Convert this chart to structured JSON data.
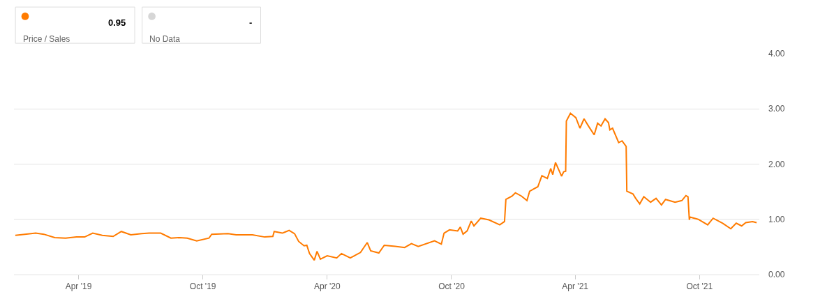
{
  "chart_data": {
    "type": "line",
    "annotations": [
      "Price / Sales",
      "0.95",
      "No Data",
      "-"
    ],
    "x": [
      "2018-12-29",
      "2019-01-12",
      "2019-01-28",
      "2019-02-09",
      "2019-02-25",
      "2019-03-13",
      "2019-03-29",
      "2019-04-10",
      "2019-04-22",
      "2019-05-06",
      "2019-05-22",
      "2019-06-03",
      "2019-06-17",
      "2019-07-03",
      "2019-07-14",
      "2019-07-31",
      "2019-08-15",
      "2019-08-28",
      "2019-09-08",
      "2019-09-22",
      "2019-10-10",
      "2019-10-14",
      "2019-11-07",
      "2019-11-19",
      "2019-12-13",
      "2019-12-31",
      "2020-01-12",
      "2020-01-14",
      "2020-01-26",
      "2020-01-30",
      "2020-02-05",
      "2020-02-13",
      "2020-02-19",
      "2020-02-27",
      "2020-03-02",
      "2020-03-06",
      "2020-03-13",
      "2020-03-17",
      "2020-03-22",
      "2020-04-01",
      "2020-04-15",
      "2020-04-22",
      "2020-05-05",
      "2020-05-20",
      "2020-05-30",
      "2020-06-04",
      "2020-06-16",
      "2020-06-24",
      "2020-07-10",
      "2020-07-24",
      "2020-08-03",
      "2020-08-13",
      "2020-09-06",
      "2020-09-16",
      "2020-09-20",
      "2020-09-28",
      "2020-10-10",
      "2020-10-14",
      "2020-10-18",
      "2020-10-24",
      "2020-10-30",
      "2020-11-03",
      "2020-11-13",
      "2020-11-25",
      "2020-12-11",
      "2020-12-18",
      "2020-12-20",
      "2020-12-29",
      "2021-01-03",
      "2021-01-12",
      "2021-01-20",
      "2021-01-24",
      "2021-02-05",
      "2021-02-11",
      "2021-02-19",
      "2021-02-24",
      "2021-02-27",
      "2021-03-03",
      "2021-03-08",
      "2021-03-12",
      "2021-03-15",
      "2021-03-18",
      "2021-03-19",
      "2021-03-25",
      "2021-04-02",
      "2021-04-08",
      "2021-04-14",
      "2021-04-21",
      "2021-04-29",
      "2021-05-04",
      "2021-05-09",
      "2021-05-15",
      "2021-05-20",
      "2021-05-22",
      "2021-05-26",
      "2021-06-04",
      "2021-06-09",
      "2021-06-15",
      "2021-06-16",
      "2021-06-25",
      "2021-06-29",
      "2021-07-05",
      "2021-07-11",
      "2021-07-21",
      "2021-07-29",
      "2021-08-06",
      "2021-08-12",
      "2021-08-26",
      "2021-09-05",
      "2021-09-11",
      "2021-09-14",
      "2021-09-16",
      "2021-09-17",
      "2021-09-29",
      "2021-10-13",
      "2021-10-21",
      "2021-11-04",
      "2021-11-16",
      "2021-11-24",
      "2021-12-02",
      "2021-12-08",
      "2021-12-18",
      "2021-12-24"
    ],
    "series": [
      {
        "color": "#ff7b00",
        "values": [
          0.71,
          0.73,
          0.75,
          0.73,
          0.67,
          0.66,
          0.68,
          0.68,
          0.75,
          0.71,
          0.69,
          0.78,
          0.72,
          0.74,
          0.75,
          0.75,
          0.66,
          0.67,
          0.66,
          0.61,
          0.66,
          0.73,
          0.74,
          0.72,
          0.72,
          0.68,
          0.69,
          0.78,
          0.75,
          0.77,
          0.8,
          0.74,
          0.6,
          0.52,
          0.53,
          0.38,
          0.26,
          0.42,
          0.28,
          0.34,
          0.3,
          0.38,
          0.3,
          0.4,
          0.58,
          0.43,
          0.39,
          0.53,
          0.51,
          0.49,
          0.56,
          0.51,
          0.61,
          0.55,
          0.75,
          0.81,
          0.79,
          0.86,
          0.73,
          0.79,
          0.97,
          0.88,
          1.02,
          0.99,
          0.9,
          0.96,
          1.36,
          1.42,
          1.48,
          1.42,
          1.34,
          1.51,
          1.59,
          1.79,
          1.74,
          1.92,
          1.81,
          2.03,
          1.89,
          1.78,
          1.86,
          1.87,
          2.78,
          2.92,
          2.84,
          2.65,
          2.82,
          2.68,
          2.53,
          2.74,
          2.69,
          2.82,
          2.75,
          2.62,
          2.65,
          2.39,
          2.42,
          2.32,
          1.51,
          1.46,
          1.38,
          1.28,
          1.41,
          1.31,
          1.38,
          1.26,
          1.36,
          1.31,
          1.34,
          1.43,
          1.41,
          0.99,
          1.04,
          1.0,
          0.9,
          1.02,
          0.93,
          0.83,
          0.93,
          0.88,
          0.94,
          0.96,
          0.94
        ]
      }
    ],
    "xlim": [
      "2018-12-27",
      "2021-12-28"
    ],
    "xticks": [
      {
        "value": "2019-04-01",
        "label": "Apr '19"
      },
      {
        "value": "2019-10-01",
        "label": "Oct '19"
      },
      {
        "value": "2020-04-01",
        "label": "Apr '20"
      },
      {
        "value": "2020-10-01",
        "label": "Oct '20"
      },
      {
        "value": "2021-04-01",
        "label": "Apr '21"
      },
      {
        "value": "2021-10-01",
        "label": "Oct '21"
      }
    ],
    "ylim": [
      0,
      4
    ],
    "yticks": [
      {
        "value": 0,
        "label": "0.00"
      },
      {
        "value": 1,
        "label": "1.00"
      },
      {
        "value": 2,
        "label": "2.00"
      },
      {
        "value": 3,
        "label": "3.00"
      },
      {
        "value": 4,
        "label": "4.00"
      }
    ],
    "grid": "y",
    "marker": "none",
    "line_style": "solid"
  }
}
